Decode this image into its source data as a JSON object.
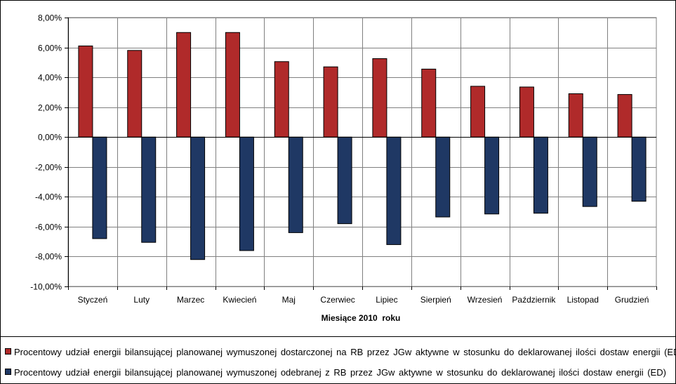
{
  "chart_data": {
    "type": "bar",
    "categories": [
      "Styczeń",
      "Luty",
      "Marzec",
      "Kwiecień",
      "Maj",
      "Czerwiec",
      "Lipiec",
      "Sierpień",
      "Wrzesień",
      "Październik",
      "Listopad",
      "Grudzień"
    ],
    "series": [
      {
        "name": "Procentowy udział energii bilansującej planowanej wymuszonej dostarczonej na RB przez JGw aktywne w stosunku do deklarowanej ilości dostaw energii (ED)",
        "color": "#B02A2A",
        "values": [
          6.1,
          5.8,
          7.0,
          7.0,
          5.05,
          4.7,
          5.25,
          4.55,
          3.4,
          3.35,
          2.9,
          2.85
        ]
      },
      {
        "name": "Procentowy udział energii bilansującej planowanej wymuszonej odebranej z RB przez JGw aktywne w stosunku do deklarowanej ilości dostaw energii (ED)",
        "color": "#1F3864",
        "values": [
          -6.8,
          -7.05,
          -8.2,
          -7.6,
          -6.4,
          -5.8,
          -7.2,
          -5.35,
          -5.15,
          -5.1,
          -4.65,
          -4.3
        ]
      }
    ],
    "yticks": [
      "8,00%",
      "6,00%",
      "4,00%",
      "2,00%",
      "0,00%",
      "-2,00%",
      "-4,00%",
      "-6,00%",
      "-8,00%",
      "-10,00%"
    ],
    "ylim": [
      -10,
      8
    ],
    "xlabel": "Miesiące 2010  roku",
    "ylabel": "",
    "grid": true,
    "legend_position": "bottom"
  }
}
